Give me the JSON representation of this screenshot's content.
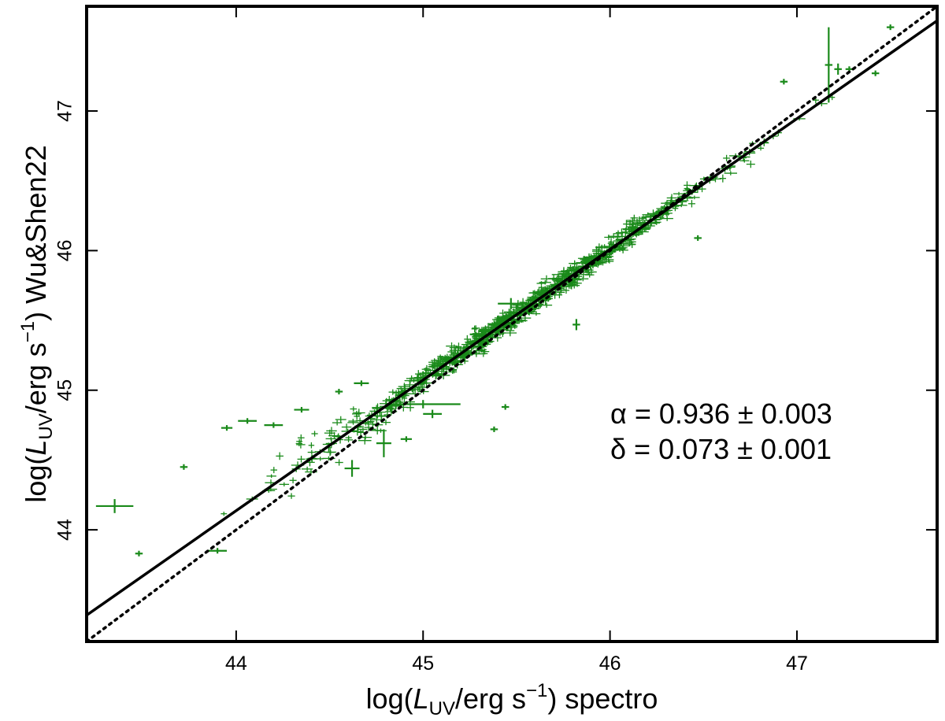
{
  "chart_data": {
    "type": "scatter",
    "xlabel": {
      "prefix": "log(",
      "var": "L",
      "sub": "UV",
      "unit": "/erg s",
      "exp": "−1",
      "suffix": ") spectro"
    },
    "ylabel": {
      "prefix": "log(",
      "var": "L",
      "sub": "UV",
      "unit": "/erg s",
      "exp": "−1",
      "suffix": ") Wu&Shen22"
    },
    "xlim": [
      43.2,
      47.75
    ],
    "ylim": [
      43.2,
      47.75
    ],
    "xticks": [
      "44",
      "45",
      "46",
      "47"
    ],
    "yticks": [
      "44",
      "45",
      "46",
      "47"
    ],
    "grid": false,
    "point_color": "#1a8a1a",
    "fit_line": {
      "style": "solid",
      "slope": 0.936,
      "intercept_at_45": 45.073,
      "color": "#000000"
    },
    "one_to_one_line": {
      "style": "dotted",
      "slope": 1.0,
      "intercept": 0.0,
      "color": "#000000"
    },
    "annotations": [
      "α = 0.936 ± 0.003",
      "δ = 0.073 ± 0.001"
    ],
    "outliers": [
      {
        "x": 43.35,
        "y": 44.17,
        "xerr": 0.1,
        "yerr": 0.05
      },
      {
        "x": 43.48,
        "y": 43.83,
        "xerr": 0.02,
        "yerr": 0.02
      },
      {
        "x": 43.72,
        "y": 44.45,
        "xerr": 0.02,
        "yerr": 0.02
      },
      {
        "x": 43.9,
        "y": 43.85,
        "xerr": 0.05,
        "yerr": 0.02
      },
      {
        "x": 43.95,
        "y": 44.73,
        "xerr": 0.03,
        "yerr": 0.02
      },
      {
        "x": 44.06,
        "y": 44.78,
        "xerr": 0.05,
        "yerr": 0.02
      },
      {
        "x": 44.2,
        "y": 44.75,
        "xerr": 0.05,
        "yerr": 0.02
      },
      {
        "x": 44.35,
        "y": 44.86,
        "xerr": 0.04,
        "yerr": 0.02
      },
      {
        "x": 44.55,
        "y": 44.99,
        "xerr": 0.02,
        "yerr": 0.02
      },
      {
        "x": 44.67,
        "y": 45.05,
        "xerr": 0.04,
        "yerr": 0.02
      },
      {
        "x": 44.62,
        "y": 44.44,
        "xerr": 0.04,
        "yerr": 0.06
      },
      {
        "x": 44.79,
        "y": 44.62,
        "xerr": 0.04,
        "yerr": 0.1
      },
      {
        "x": 44.91,
        "y": 44.65,
        "xerr": 0.03,
        "yerr": 0.02
      },
      {
        "x": 45.0,
        "y": 44.9,
        "xerr": 0.2,
        "yerr": 0.03
      },
      {
        "x": 45.05,
        "y": 44.83,
        "xerr": 0.05,
        "yerr": 0.03
      },
      {
        "x": 45.38,
        "y": 44.72,
        "xerr": 0.02,
        "yerr": 0.02
      },
      {
        "x": 45.44,
        "y": 44.88,
        "xerr": 0.02,
        "yerr": 0.02
      },
      {
        "x": 45.28,
        "y": 45.4,
        "xerr": 0.03,
        "yerr": 0.02
      },
      {
        "x": 45.47,
        "y": 45.62,
        "xerr": 0.07,
        "yerr": 0.04
      },
      {
        "x": 45.82,
        "y": 45.47,
        "xerr": 0.02,
        "yerr": 0.04
      },
      {
        "x": 45.87,
        "y": 45.86,
        "xerr": 0.02,
        "yerr": 0.02
      },
      {
        "x": 46.08,
        "y": 46.08,
        "xerr": 0.05,
        "yerr": 0.02
      },
      {
        "x": 46.47,
        "y": 46.09,
        "xerr": 0.02,
        "yerr": 0.02
      },
      {
        "x": 46.93,
        "y": 47.21,
        "xerr": 0.02,
        "yerr": 0.02
      },
      {
        "x": 47.17,
        "y": 47.33,
        "xerr": 0.02,
        "yerr": 0.27
      },
      {
        "x": 47.22,
        "y": 47.3,
        "xerr": 0.02,
        "yerr": 0.04
      },
      {
        "x": 47.28,
        "y": 47.3,
        "xerr": 0.02,
        "yerr": 0.02
      },
      {
        "x": 47.42,
        "y": 47.27,
        "xerr": 0.02,
        "yerr": 0.02
      },
      {
        "x": 47.5,
        "y": 47.6,
        "xerr": 0.02,
        "yerr": 0.02
      }
    ],
    "bulk": {
      "n": 900,
      "x_range": [
        43.9,
        47.5
      ],
      "x_center": 45.5,
      "x_sigma": 0.55,
      "scatter_sigma": 0.04
    }
  }
}
